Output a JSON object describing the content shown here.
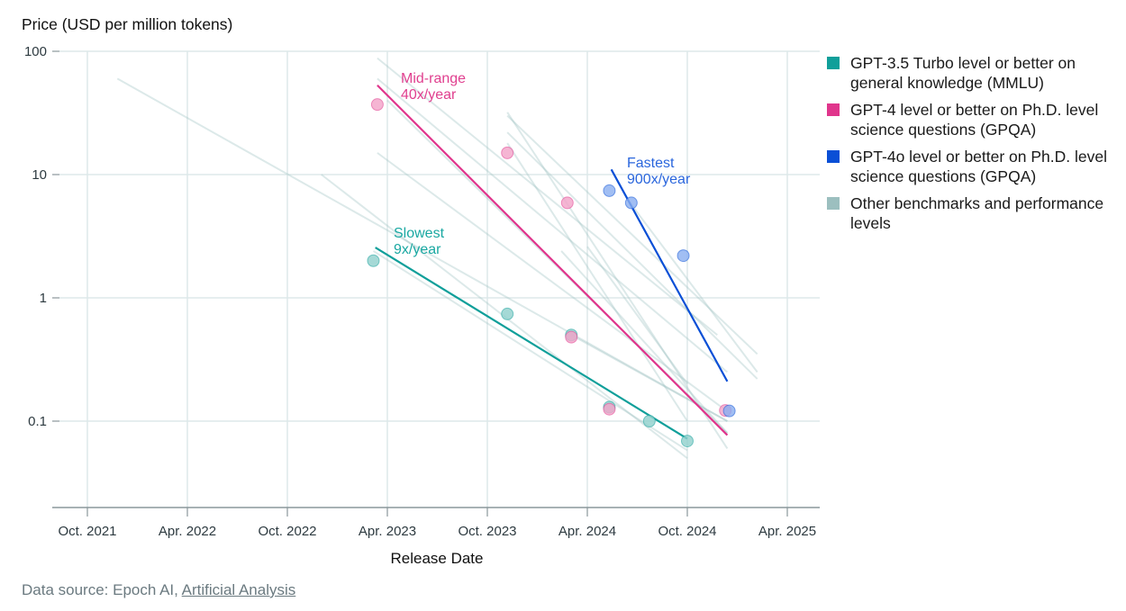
{
  "chart_data": {
    "type": "scatter",
    "title": "",
    "ylabel": "Price (USD per million tokens)",
    "xlabel": "Release Date",
    "yscale": "log",
    "ylim": [
      0.02,
      100
    ],
    "xlim": [
      2021.64,
      2025.27
    ],
    "grid": true,
    "legend_position": "right",
    "y_ticks": [
      {
        "value": 100,
        "label": "100"
      },
      {
        "value": 10,
        "label": "10"
      },
      {
        "value": 1,
        "label": "1"
      },
      {
        "value": 0.1,
        "label": "0.1"
      }
    ],
    "x_ticks": [
      {
        "value": 2021.75,
        "label": "Oct. 2021"
      },
      {
        "value": 2022.25,
        "label": "Apr. 2022"
      },
      {
        "value": 2022.75,
        "label": "Oct. 2022"
      },
      {
        "value": 2023.25,
        "label": "Apr. 2023"
      },
      {
        "value": 2023.75,
        "label": "Oct. 2023"
      },
      {
        "value": 2024.25,
        "label": "Apr. 2024"
      },
      {
        "value": 2024.75,
        "label": "Oct. 2024"
      },
      {
        "value": 2025.25,
        "label": "Apr. 2025"
      }
    ],
    "series": [
      {
        "name": "GPT-3.5 Turbo level or better on general knowledge (MMLU)",
        "color": "#109f9a",
        "point_color": "#8fd0cc",
        "points": [
          {
            "x": 2023.18,
            "y": 2.0
          },
          {
            "x": 2023.85,
            "y": 0.74
          },
          {
            "x": 2024.17,
            "y": 0.5
          },
          {
            "x": 2024.36,
            "y": 0.13
          },
          {
            "x": 2024.56,
            "y": 0.1
          },
          {
            "x": 2024.75,
            "y": 0.069
          }
        ],
        "trend": {
          "x": [
            2023.19,
            2024.75
          ],
          "y": [
            2.56,
            0.072
          ]
        },
        "annotation": {
          "line1": "Slowest",
          "line2": "9x/year"
        }
      },
      {
        "name": "GPT-4 level or better on Ph.D. level science questions (GPQA)",
        "color": "#e0358c",
        "point_color": "#f2a3c8",
        "points": [
          {
            "x": 2023.2,
            "y": 37
          },
          {
            "x": 2023.85,
            "y": 15
          },
          {
            "x": 2024.15,
            "y": 5.9
          },
          {
            "x": 2024.17,
            "y": 0.48
          },
          {
            "x": 2024.36,
            "y": 0.125
          },
          {
            "x": 2024.94,
            "y": 0.122
          }
        ],
        "trend": {
          "x": [
            2023.2,
            2024.95
          ],
          "y": [
            53,
            0.077
          ]
        },
        "annotation": {
          "line1": "Mid-range",
          "line2": "40x/year"
        }
      },
      {
        "name": "GPT-4o level or better on Ph.D. level science questions (GPQA)",
        "color": "#0a4fd6",
        "point_color": "#8aaef0",
        "points": [
          {
            "x": 2024.36,
            "y": 7.4
          },
          {
            "x": 2024.47,
            "y": 5.9
          },
          {
            "x": 2024.73,
            "y": 2.2
          },
          {
            "x": 2024.96,
            "y": 0.121
          }
        ],
        "trend": {
          "x": [
            2024.37,
            2024.95
          ],
          "y": [
            11,
            0.21
          ]
        },
        "annotation": {
          "line1": "Fastest",
          "line2": "900x/year"
        }
      },
      {
        "name": "Other benchmarks and performance levels",
        "color": "#9cbfbf",
        "point_color": "#9cbfbf",
        "points": [],
        "trend_lines": [
          {
            "x": [
              2021.9,
              2024.95
            ],
            "y": [
              60,
              0.1
            ]
          },
          {
            "x": [
              2022.92,
              2024.75
            ],
            "y": [
              10,
              0.05
            ]
          },
          {
            "x": [
              2023.18,
              2024.75
            ],
            "y": [
              2.4,
              0.058
            ]
          },
          {
            "x": [
              2023.2,
              2024.95
            ],
            "y": [
              15,
              0.12
            ]
          },
          {
            "x": [
              2023.2,
              2024.9
            ],
            "y": [
              88,
              0.5
            ]
          },
          {
            "x": [
              2023.2,
              2024.95
            ],
            "y": [
              60,
              0.25
            ]
          },
          {
            "x": [
              2023.25,
              2024.95
            ],
            "y": [
              40,
              0.08
            ]
          },
          {
            "x": [
              2023.85,
              2024.95
            ],
            "y": [
              32,
              0.06
            ]
          },
          {
            "x": [
              2023.85,
              2025.1
            ],
            "y": [
              30,
              0.35
            ]
          },
          {
            "x": [
              2023.85,
              2025.1
            ],
            "y": [
              22,
              0.22
            ]
          },
          {
            "x": [
              2023.85,
              2024.75
            ],
            "y": [
              18,
              0.1
            ]
          },
          {
            "x": [
              2024.12,
              2024.95
            ],
            "y": [
              2.4,
              0.08
            ]
          },
          {
            "x": [
              2024.25,
              2024.75
            ],
            "y": [
              2.6,
              0.2
            ]
          },
          {
            "x": [
              2024.46,
              2025.1
            ],
            "y": [
              6,
              0.25
            ]
          },
          {
            "x": [
              2024.17,
              2024.95
            ],
            "y": [
              0.5,
              0.1
            ]
          }
        ]
      }
    ]
  },
  "legend": {
    "items": [
      {
        "label": "GPT-3.5 Turbo level or better on general knowledge (MMLU)",
        "color": "#109f9a"
      },
      {
        "label": "GPT-4 level or better on Ph.D. level science questions (GPQA)",
        "color": "#e0358c"
      },
      {
        "label": "GPT-4o level or better on Ph.D. level science questions (GPQA)",
        "color": "#0a4fd6"
      },
      {
        "label": "Other benchmarks and performance levels",
        "color": "#9cbfbf"
      }
    ]
  },
  "footer": {
    "prefix": "Data source: Epoch AI, ",
    "link_text": "Artificial Analysis"
  },
  "colors": {
    "grid": "#dde9ea",
    "axis": "#8a979b"
  }
}
